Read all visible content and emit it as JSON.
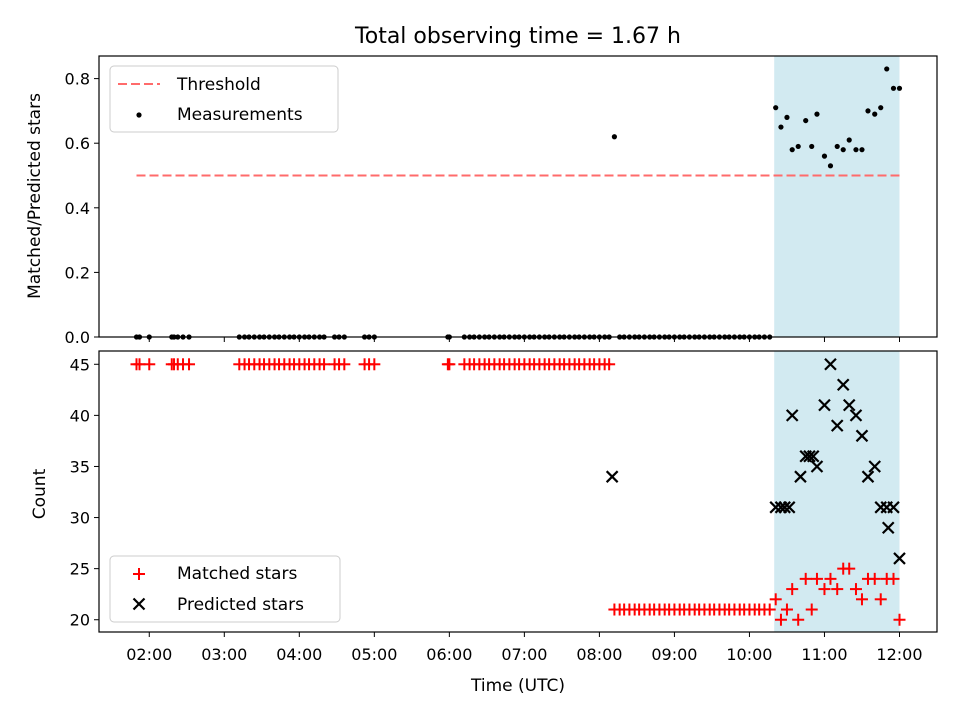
{
  "figure": {
    "title": "Total observing time = 1.67 h",
    "xlabel": "Time (UTC)",
    "xticks": [
      {
        "t": 2,
        "label": "02:00"
      },
      {
        "t": 3,
        "label": "03:00"
      },
      {
        "t": 4,
        "label": "04:00"
      },
      {
        "t": 5,
        "label": "05:00"
      },
      {
        "t": 6,
        "label": "06:00"
      },
      {
        "t": 7,
        "label": "07:00"
      },
      {
        "t": 8,
        "label": "08:00"
      },
      {
        "t": 9,
        "label": "09:00"
      },
      {
        "t": 10,
        "label": "10:00"
      },
      {
        "t": 11,
        "label": "11:00"
      },
      {
        "t": 12,
        "label": "12:00"
      }
    ],
    "xlim": [
      1.33,
      12.5
    ],
    "shaded_interval": [
      10.33,
      12.0
    ],
    "colors": {
      "shade": "#add8e6",
      "threshold": "#ff6b6b",
      "matched": "#ff0000",
      "predicted": "#000000",
      "measurement": "#000000"
    }
  },
  "chart_data": [
    {
      "type": "scatter",
      "ylabel": "Matched/Predicted stars",
      "ylim": [
        0,
        0.87
      ],
      "yticks": [
        "0.0",
        "0.2",
        "0.4",
        "0.6",
        "0.8"
      ],
      "legend": {
        "placement": "upper-left",
        "entries": [
          "Threshold",
          "Measurements"
        ]
      },
      "threshold": {
        "name": "Threshold",
        "y": 0.5,
        "x_range": [
          1.83,
          12.0
        ]
      },
      "series": [
        {
          "name": "Measurements",
          "x": [
            1.83,
            1.87,
            2.0,
            2.3,
            2.33,
            2.38,
            2.45,
            2.53,
            3.2,
            3.27,
            3.33,
            3.4,
            3.47,
            3.53,
            3.6,
            3.67,
            3.73,
            3.8,
            3.87,
            3.93,
            4.0,
            4.07,
            4.13,
            4.2,
            4.27,
            4.33,
            4.47,
            4.53,
            4.6,
            4.87,
            4.93,
            5.0,
            5.98,
            6.0,
            6.2,
            6.27,
            6.33,
            6.4,
            6.47,
            6.53,
            6.6,
            6.67,
            6.73,
            6.8,
            6.87,
            6.93,
            7.0,
            7.07,
            7.13,
            7.2,
            7.27,
            7.33,
            7.4,
            7.47,
            7.53,
            7.6,
            7.67,
            7.73,
            7.8,
            7.87,
            7.93,
            8.0,
            8.07,
            8.13,
            8.2,
            8.27,
            8.33,
            8.4,
            8.47,
            8.53,
            8.6,
            8.67,
            8.73,
            8.8,
            8.87,
            8.93,
            9.0,
            9.07,
            9.13,
            9.2,
            9.27,
            9.33,
            9.4,
            9.47,
            9.53,
            9.6,
            9.67,
            9.73,
            9.8,
            9.87,
            9.93,
            10.0,
            10.07,
            10.13,
            10.2,
            10.27,
            10.35,
            10.42,
            10.5,
            10.57,
            10.65,
            10.75,
            10.83,
            10.9,
            11.0,
            11.08,
            11.17,
            11.25,
            11.33,
            11.42,
            11.5,
            11.58,
            11.67,
            11.75,
            11.83,
            11.92,
            12.0
          ],
          "y": [
            0,
            0,
            0,
            0,
            0,
            0,
            0,
            0,
            0,
            0,
            0,
            0,
            0,
            0,
            0,
            0,
            0,
            0,
            0,
            0,
            0,
            0,
            0,
            0,
            0,
            0,
            0,
            0,
            0,
            0,
            0,
            0,
            0,
            0,
            0,
            0,
            0,
            0,
            0,
            0,
            0,
            0,
            0,
            0,
            0,
            0,
            0,
            0,
            0,
            0,
            0,
            0,
            0,
            0,
            0,
            0,
            0,
            0,
            0,
            0,
            0,
            0,
            0,
            0,
            0.62,
            0,
            0,
            0,
            0,
            0,
            0,
            0,
            0,
            0,
            0,
            0,
            0,
            0,
            0,
            0,
            0,
            0,
            0,
            0,
            0,
            0,
            0,
            0,
            0,
            0,
            0,
            0,
            0,
            0,
            0,
            0,
            0.71,
            0.65,
            0.68,
            0.58,
            0.59,
            0.67,
            0.59,
            0.69,
            0.56,
            0.53,
            0.59,
            0.58,
            0.61,
            0.58,
            0.58,
            0.7,
            0.69,
            0.71,
            0.83,
            0.77,
            0.77
          ]
        }
      ]
    },
    {
      "type": "scatter",
      "ylabel": "Count",
      "ylim": [
        18.8,
        46.3
      ],
      "yticks": [
        "20",
        "25",
        "30",
        "35",
        "40",
        "45"
      ],
      "legend": {
        "placement": "lower-left",
        "entries": [
          "Matched stars",
          "Predicted stars"
        ]
      },
      "series": [
        {
          "name": "Matched stars",
          "x": [
            1.83,
            1.87,
            2.0,
            2.3,
            2.33,
            2.38,
            2.45,
            2.53,
            3.2,
            3.27,
            3.33,
            3.4,
            3.47,
            3.53,
            3.6,
            3.67,
            3.73,
            3.8,
            3.87,
            3.93,
            4.0,
            4.07,
            4.13,
            4.2,
            4.27,
            4.33,
            4.47,
            4.53,
            4.6,
            4.87,
            4.93,
            5.0,
            5.98,
            6.0,
            6.2,
            6.27,
            6.33,
            6.4,
            6.47,
            6.53,
            6.6,
            6.67,
            6.73,
            6.8,
            6.87,
            6.93,
            7.0,
            7.07,
            7.13,
            7.2,
            7.27,
            7.33,
            7.4,
            7.47,
            7.53,
            7.6,
            7.67,
            7.73,
            7.8,
            7.87,
            7.93,
            8.0,
            8.07,
            8.13,
            8.2,
            8.27,
            8.33,
            8.4,
            8.47,
            8.53,
            8.6,
            8.67,
            8.73,
            8.8,
            8.87,
            8.93,
            9.0,
            9.07,
            9.13,
            9.2,
            9.27,
            9.33,
            9.4,
            9.47,
            9.53,
            9.6,
            9.67,
            9.73,
            9.8,
            9.87,
            9.93,
            10.0,
            10.07,
            10.13,
            10.2,
            10.27,
            10.35,
            10.42,
            10.5,
            10.57,
            10.65,
            10.75,
            10.83,
            10.9,
            11.0,
            11.08,
            11.17,
            11.25,
            11.33,
            11.42,
            11.5,
            11.58,
            11.67,
            11.75,
            11.83,
            11.92,
            12.0
          ],
          "y": [
            45,
            45,
            45,
            45,
            45,
            45,
            45,
            45,
            45,
            45,
            45,
            45,
            45,
            45,
            45,
            45,
            45,
            45,
            45,
            45,
            45,
            45,
            45,
            45,
            45,
            45,
            45,
            45,
            45,
            45,
            45,
            45,
            45,
            45,
            45,
            45,
            45,
            45,
            45,
            45,
            45,
            45,
            45,
            45,
            45,
            45,
            45,
            45,
            45,
            45,
            45,
            45,
            45,
            45,
            45,
            45,
            45,
            45,
            45,
            45,
            45,
            45,
            45,
            45,
            21,
            21,
            21,
            21,
            21,
            21,
            21,
            21,
            21,
            21,
            21,
            21,
            21,
            21,
            21,
            21,
            21,
            21,
            21,
            21,
            21,
            21,
            21,
            21,
            21,
            21,
            21,
            21,
            21,
            21,
            21,
            21,
            22,
            20,
            21,
            23,
            20,
            24,
            21,
            24,
            23,
            24,
            23,
            25,
            25,
            23,
            22,
            24,
            24,
            22,
            24,
            24,
            20
          ]
        },
        {
          "name": "Predicted stars",
          "x": [
            8.17,
            10.35,
            10.42,
            10.47,
            10.53,
            10.57,
            10.68,
            10.75,
            10.8,
            10.85,
            10.9,
            11.0,
            11.08,
            11.17,
            11.25,
            11.33,
            11.42,
            11.5,
            11.58,
            11.67,
            11.75,
            11.83,
            11.85,
            11.92,
            12.0
          ],
          "y": [
            34,
            31,
            31,
            31,
            31,
            40,
            34,
            36,
            36,
            36,
            35,
            41,
            45,
            39,
            43,
            41,
            40,
            38,
            34,
            35,
            31,
            31,
            29,
            31,
            26
          ]
        }
      ]
    }
  ]
}
